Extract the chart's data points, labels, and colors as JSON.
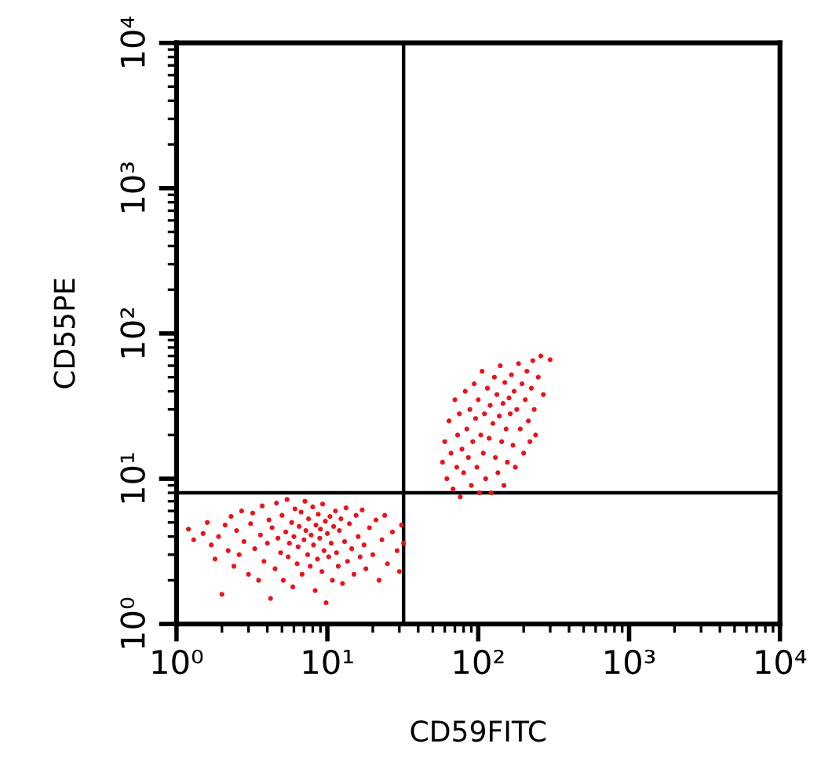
{
  "chart_data": {
    "type": "scatter",
    "xlabel": "CD59FITC",
    "ylabel": "CD55PE",
    "log": "xy",
    "grid": false,
    "legend": false,
    "marker": "circle",
    "xlim": [
      1,
      10000
    ],
    "ylim": [
      1,
      10000
    ],
    "xticks": [
      {
        "value": 1,
        "label": "10⁰"
      },
      {
        "value": 10,
        "label": "10¹"
      },
      {
        "value": 100,
        "label": "10²"
      },
      {
        "value": 1000,
        "label": "10³"
      },
      {
        "value": 10000,
        "label": "10⁴"
      }
    ],
    "yticks": [
      {
        "value": 1,
        "label": "10⁰"
      },
      {
        "value": 10,
        "label": "10¹"
      },
      {
        "value": 100,
        "label": "10²"
      },
      {
        "value": 1000,
        "label": "10³"
      },
      {
        "value": 10000,
        "label": "10⁴"
      }
    ],
    "ref_lines": [
      {
        "axis": "x",
        "value": 32,
        "color": "#000000"
      },
      {
        "axis": "y",
        "value": 8,
        "color": "#000000"
      }
    ],
    "series": [
      {
        "color": "#e8141c",
        "x": [
          1.2,
          1.3,
          1.5,
          1.6,
          1.7,
          1.8,
          1.9,
          2.0,
          2.1,
          2.2,
          2.3,
          2.4,
          2.5,
          2.6,
          2.7,
          2.8,
          3.0,
          3.1,
          3.2,
          3.3,
          3.5,
          3.6,
          3.7,
          3.8,
          4.0,
          4.1,
          4.2,
          4.3,
          4.5,
          4.6,
          4.7,
          4.9,
          5.0,
          5.1,
          5.3,
          5.4,
          5.5,
          5.6,
          5.8,
          5.9,
          6.0,
          6.1,
          6.3,
          6.4,
          6.5,
          6.7,
          6.8,
          7.0,
          7.1,
          7.2,
          7.4,
          7.5,
          7.7,
          7.8,
          8.0,
          8.1,
          8.3,
          8.4,
          8.6,
          8.7,
          8.9,
          9.0,
          9.2,
          9.3,
          9.5,
          9.7,
          9.8,
          10.0,
          10.2,
          10.4,
          10.6,
          10.8,
          11.0,
          11.3,
          11.5,
          11.8,
          12.0,
          12.3,
          12.6,
          13.0,
          13.3,
          13.6,
          14.0,
          14.5,
          15.0,
          15.5,
          16.0,
          16.5,
          17.0,
          17.5,
          18.0,
          19.0,
          20.0,
          21.0,
          22.0,
          23.0,
          24.0,
          25.0,
          27.0,
          29.0,
          30.0,
          31.0,
          32.0
        ],
        "values": [
          4.5,
          3.8,
          4.2,
          5.0,
          3.5,
          2.8,
          4.0,
          1.6,
          4.8,
          3.2,
          5.5,
          2.5,
          4.4,
          3.0,
          6.0,
          3.7,
          2.2,
          4.9,
          5.8,
          3.3,
          2.0,
          4.1,
          6.5,
          2.7,
          3.6,
          5.2,
          1.5,
          4.6,
          2.4,
          6.8,
          3.9,
          3.1,
          5.6,
          2.0,
          4.3,
          7.2,
          2.9,
          3.6,
          5.0,
          1.8,
          4.0,
          6.2,
          2.6,
          3.4,
          4.7,
          5.9,
          2.2,
          3.8,
          7.0,
          4.4,
          3.0,
          5.3,
          2.5,
          4.1,
          6.4,
          3.5,
          1.7,
          4.8,
          2.8,
          5.7,
          3.9,
          4.5,
          2.3,
          6.7,
          3.2,
          5.1,
          1.4,
          4.2,
          2.9,
          5.5,
          3.6,
          2.0,
          4.7,
          6.0,
          3.1,
          2.5,
          4.4,
          5.3,
          1.9,
          3.7,
          6.3,
          2.7,
          4.9,
          3.3,
          2.2,
          5.6,
          4.0,
          2.9,
          6.1,
          3.5,
          2.4,
          4.6,
          3.0,
          5.2,
          2.0,
          3.8,
          5.6,
          2.6,
          4.3,
          3.2,
          2.3,
          4.8,
          3.6
        ]
      },
      {
        "color": "#e8141c",
        "x": [
          58,
          60,
          62,
          64,
          66,
          68,
          70,
          72,
          73,
          75,
          76,
          78,
          80,
          82,
          84,
          86,
          88,
          90,
          92,
          94,
          96,
          98,
          100,
          102,
          104,
          106,
          108,
          110,
          112,
          115,
          118,
          120,
          122,
          125,
          128,
          130,
          133,
          135,
          138,
          140,
          143,
          146,
          148,
          150,
          153,
          156,
          160,
          163,
          166,
          170,
          173,
          176,
          180,
          185,
          190,
          195,
          200,
          205,
          210,
          215,
          220,
          225,
          230,
          235,
          240,
          250,
          260,
          270,
          300
        ],
        "values": [
          13,
          18,
          10,
          25,
          15,
          8.5,
          35,
          12,
          20,
          28,
          7.5,
          16,
          11,
          40,
          22,
          14,
          30,
          9,
          18,
          45,
          26,
          12,
          35,
          8,
          20,
          55,
          15,
          28,
          10,
          42,
          19,
          32,
          8,
          24,
          50,
          14,
          38,
          11,
          27,
          60,
          18,
          33,
          9,
          46,
          22,
          13,
          36,
          28,
          52,
          17,
          40,
          12,
          30,
          62,
          22,
          45,
          15,
          35,
          55,
          25,
          18,
          42,
          65,
          30,
          20,
          50,
          70,
          38,
          66
        ]
      }
    ]
  }
}
